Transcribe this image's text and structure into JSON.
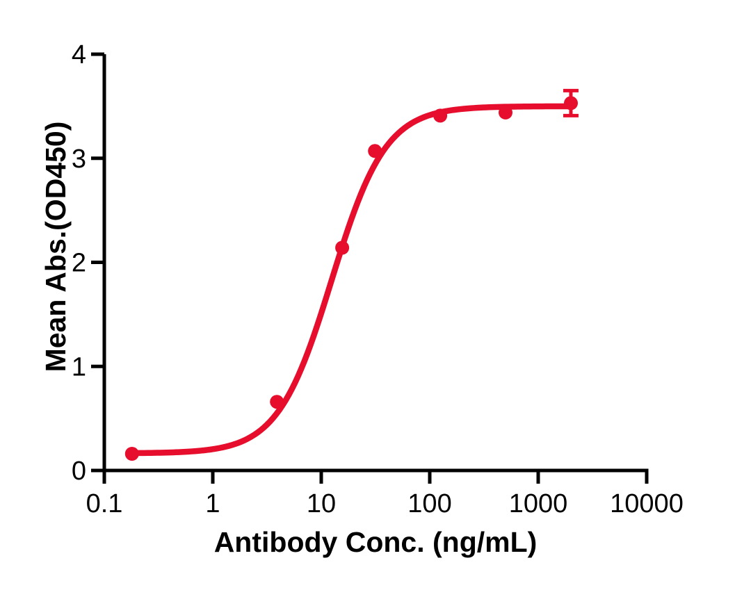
{
  "chart_data": {
    "type": "scatter",
    "title": "",
    "xlabel": "Antibody Conc. (ng/mL)",
    "ylabel": "Mean Abs.(OD450)",
    "x_scale": "log",
    "x": [
      0.18,
      3.9,
      15.6,
      31.25,
      125,
      500,
      2000
    ],
    "y": [
      0.16,
      0.66,
      2.14,
      3.07,
      3.41,
      3.44,
      3.53
    ],
    "y_error": [
      0,
      0,
      0,
      0,
      0,
      0,
      0.12
    ],
    "x_ticks": [
      0.1,
      1,
      10,
      100,
      1000,
      10000
    ],
    "x_tick_labels": [
      "0.1",
      "1",
      "10",
      "100",
      "1000",
      "10000"
    ],
    "y_ticks": [
      0,
      1,
      2,
      3,
      4
    ],
    "y_tick_labels": [
      "0",
      "1",
      "2",
      "3",
      "4"
    ],
    "xlim": [
      0.1,
      10000
    ],
    "ylim": [
      0,
      4
    ],
    "fit_curve": {
      "model": "4PL",
      "bottom": 0.165,
      "top": 3.5,
      "ec50": 12.5,
      "hill": 1.75
    },
    "colors": {
      "series": "#e60e2c",
      "axis": "#000000"
    },
    "legend": null,
    "grid": false
  }
}
